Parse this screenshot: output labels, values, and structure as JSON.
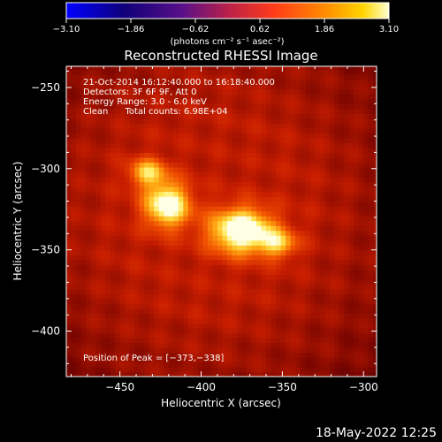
{
  "chart_data": {
    "type": "heatmap",
    "title": "Reconstructed RHESSI Image",
    "xlabel": "Heliocentric X (arcsec)",
    "ylabel": "Heliocentric Y (arcsec)",
    "xlim": [
      -483,
      -292
    ],
    "ylim": [
      -428,
      -237
    ],
    "xticks": [
      -450,
      -400,
      -350,
      -300
    ],
    "xtick_labels": [
      "−450",
      "−400",
      "−350",
      "−300"
    ],
    "yticks": [
      -250,
      -300,
      -350,
      -400
    ],
    "ytick_labels": [
      "−250",
      "−300",
      "−350",
      "−400"
    ],
    "colormap": "red temperature (black-red-yellow-white)",
    "sources": [
      {
        "x": -375,
        "y": -338,
        "sigma_x": 14,
        "sigma_y": 10,
        "peak": 1.0
      },
      {
        "x": -421,
        "y": -322,
        "sigma_x": 10,
        "sigma_y": 10,
        "peak": 0.9
      },
      {
        "x": -433,
        "y": -302,
        "sigma_x": 8,
        "sigma_y": 6,
        "peak": 0.6
      },
      {
        "x": -352,
        "y": -346,
        "sigma_x": 8,
        "sigma_y": 6,
        "peak": 0.5
      }
    ],
    "annotations": [
      "21-Oct-2014 16:12:40.000 to 16:18:40.000",
      "Detectors: 3F 6F 9F, Att 0",
      "Energy Range: 3.0 - 6.0 keV",
      "Clean      Total counts: 6.98E+04"
    ],
    "peak_position": [
      -373,
      -338
    ],
    "peak_label": "Position of Peak = [−373,−338]",
    "colorbar": {
      "range": [
        -3.1,
        3.1
      ],
      "tick_labels": [
        "−3.10",
        "−1.86",
        "−0.62",
        "0.62",
        "1.86",
        "3.10"
      ],
      "unit_label": "(photons cm⁻² s⁻¹ asec⁻²)"
    },
    "timestamp": "18-May-2022 12:25"
  }
}
